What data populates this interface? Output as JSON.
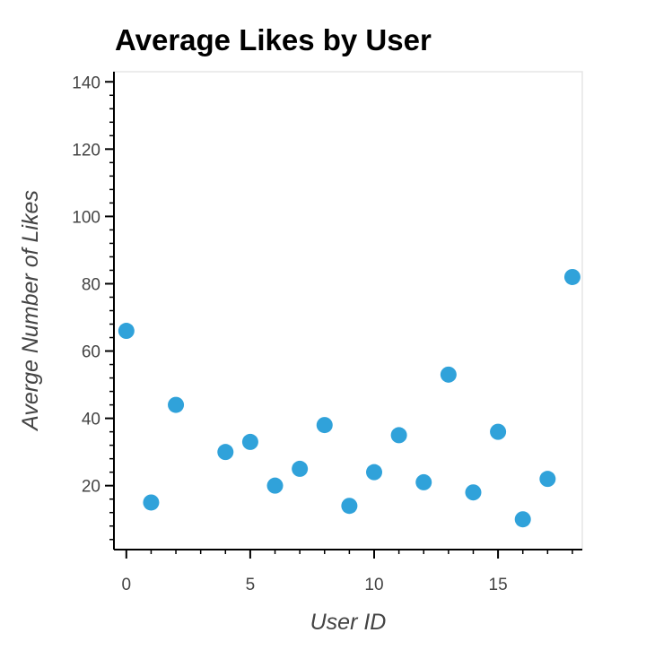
{
  "chart_data": {
    "type": "scatter",
    "title": "Average Likes by User",
    "xlabel": "User ID",
    "ylabel": "Averge Number of Likes",
    "xlim": [
      -0.5,
      18.4
    ],
    "ylim": [
      1,
      143
    ],
    "x_ticks": [
      0,
      5,
      10,
      15
    ],
    "y_ticks": [
      20,
      40,
      60,
      80,
      100,
      120,
      140
    ],
    "grid": false,
    "point_color": "#30a2da",
    "points": [
      {
        "x": 0,
        "y": 66
      },
      {
        "x": 1,
        "y": 15
      },
      {
        "x": 2,
        "y": 44
      },
      {
        "x": 4,
        "y": 30
      },
      {
        "x": 5,
        "y": 33
      },
      {
        "x": 6,
        "y": 20
      },
      {
        "x": 7,
        "y": 25
      },
      {
        "x": 8,
        "y": 38
      },
      {
        "x": 9,
        "y": 14
      },
      {
        "x": 10,
        "y": 24
      },
      {
        "x": 11,
        "y": 35
      },
      {
        "x": 12,
        "y": 21
      },
      {
        "x": 13,
        "y": 53
      },
      {
        "x": 14,
        "y": 18
      },
      {
        "x": 15,
        "y": 36
      },
      {
        "x": 16,
        "y": 10
      },
      {
        "x": 17,
        "y": 22
      },
      {
        "x": 18,
        "y": 82
      }
    ]
  }
}
